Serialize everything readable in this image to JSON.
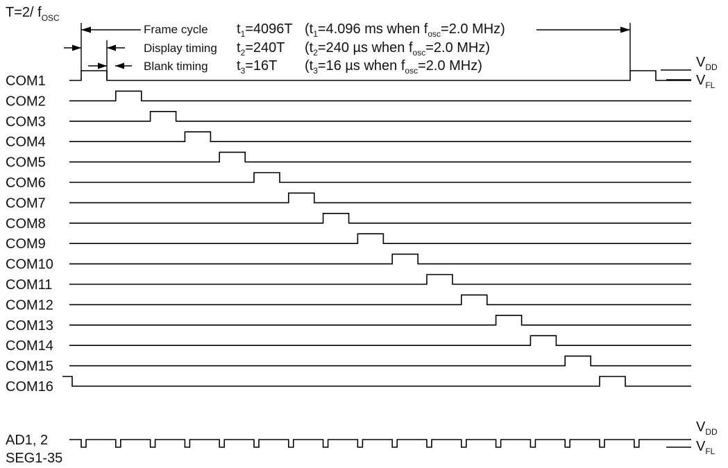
{
  "header": {
    "period": {
      "main": "T=2/ f",
      "sub": "OSC"
    }
  },
  "annotations": [
    {
      "name": "Frame cycle",
      "value_main": "t",
      "value_sub": "1",
      "value_rest": "=4096T",
      "note": [
        {
          "t": "(t"
        },
        {
          "s": "1"
        },
        {
          "t": "=4.096 ms when f"
        },
        {
          "s": "osc"
        },
        {
          "t": "=2.0 MHz)"
        }
      ]
    },
    {
      "name": "Display timing",
      "value_main": "t",
      "value_sub": "2",
      "value_rest": "=240T",
      "note": [
        {
          "t": "(t"
        },
        {
          "s": "2"
        },
        {
          "t": "=240 µs when f"
        },
        {
          "s": "osc"
        },
        {
          "t": "=2.0 MHz)"
        }
      ]
    },
    {
      "name": "Blank timing",
      "value_main": "t",
      "value_sub": "3",
      "value_rest": "=16T",
      "note": [
        {
          "t": "(t"
        },
        {
          "s": "3"
        },
        {
          "t": "=16 µs when f"
        },
        {
          "s": "osc"
        },
        {
          "t": "=2.0 MHz)"
        }
      ]
    }
  ],
  "levels": {
    "high": {
      "main": "V",
      "sub": "DD"
    },
    "low": {
      "main": "V",
      "sub": "FL"
    }
  },
  "com_signals": [
    "COM1",
    "COM2",
    "COM3",
    "COM4",
    "COM5",
    "COM6",
    "COM7",
    "COM8",
    "COM9",
    "COM10",
    "COM11",
    "COM12",
    "COM13",
    "COM14",
    "COM15",
    "COM16"
  ],
  "segment_signal": {
    "label_line1": "AD1, 2",
    "label_line2": "SEG1-35"
  },
  "timing": {
    "frame_cycle_T": 4096,
    "display_timing_T": 240,
    "blank_timing_T": 16,
    "grids": 16,
    "display_pulse_active_level": "VDD",
    "blank_level": "VFL"
  }
}
